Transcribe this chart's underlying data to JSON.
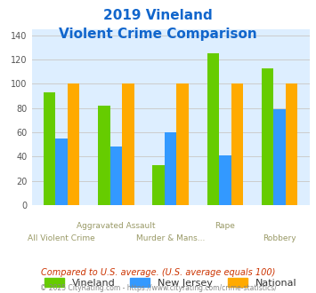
{
  "title_line1": "2019 Vineland",
  "title_line2": "Violent Crime Comparison",
  "categories": [
    "All Violent Crime",
    "Aggravated Assault",
    "Murder & Mans...",
    "Rape",
    "Robbery"
  ],
  "series": {
    "Vineland": [
      93,
      82,
      33,
      125,
      113
    ],
    "New Jersey": [
      55,
      48,
      60,
      41,
      79
    ],
    "National": [
      100,
      100,
      100,
      100,
      100
    ]
  },
  "colors": {
    "Vineland": "#66cc00",
    "New Jersey": "#3399ff",
    "National": "#ffaa00"
  },
  "ylim": [
    0,
    145
  ],
  "yticks": [
    0,
    20,
    40,
    60,
    80,
    100,
    120,
    140
  ],
  "grid_color": "#cccccc",
  "plot_bg_color": "#ddeeff",
  "title_color": "#1166cc",
  "footnote1": "Compared to U.S. average. (U.S. average equals 100)",
  "footnote2": "© 2025 CityRating.com - https://www.cityrating.com/crime-statistics/",
  "footnote1_color": "#cc3300",
  "footnote2_color": "#888888",
  "label_color": "#999966",
  "top_labels": [
    "",
    "Aggravated Assault",
    "",
    "Rape",
    ""
  ],
  "bot_labels": [
    "All Violent Crime",
    "",
    "Murder & Mans...",
    "",
    "Robbery"
  ]
}
